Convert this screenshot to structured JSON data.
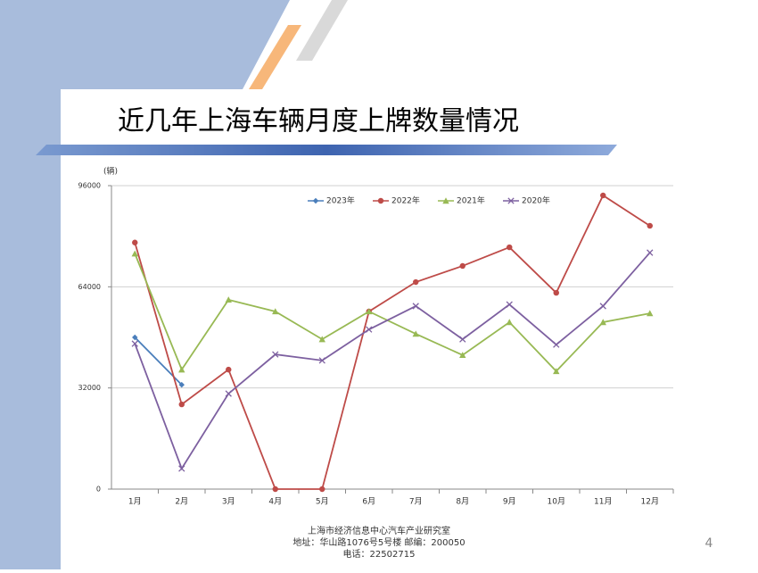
{
  "chart_data": {
    "type": "line",
    "title": "近几年上海车辆月度上牌数量情况",
    "y_label": "(辆)",
    "categories": [
      "1月",
      "2月",
      "3月",
      "4月",
      "5月",
      "6月",
      "7月",
      "8月",
      "9月",
      "10月",
      "11月",
      "12月"
    ],
    "series": [
      {
        "name": "2023年",
        "color": "#4a7ebb",
        "marker": "diamond",
        "values": [
          48000,
          33000,
          null,
          null,
          null,
          null,
          null,
          null,
          null,
          null,
          null,
          null
        ]
      },
      {
        "name": "2022年",
        "color": "#be4b48",
        "marker": "circle",
        "values": [
          78000,
          26800,
          37800,
          0,
          0,
          56200,
          65500,
          70600,
          76500,
          62100,
          92900,
          83300
        ]
      },
      {
        "name": "2021年",
        "color": "#98b954",
        "marker": "triangle",
        "values": [
          74500,
          37800,
          59900,
          56200,
          47400,
          56200,
          49100,
          42400,
          52800,
          37300,
          52800,
          55600
        ]
      },
      {
        "name": "2020年",
        "color": "#7d60a0",
        "marker": "x",
        "values": [
          46000,
          6500,
          30200,
          42600,
          40700,
          50500,
          57900,
          47400,
          58400,
          45700,
          57900,
          74800
        ]
      }
    ],
    "ylim": [
      0,
      96000
    ],
    "yticks": [
      0,
      32000,
      64000,
      96000
    ],
    "grid": true,
    "legend": "top"
  },
  "footer": {
    "lines": [
      "上海市经济信息中心汽车产业研究室",
      "地址：华山路1076号5号楼    邮编：200050",
      "电话：22502715"
    ],
    "page_number": "4"
  }
}
